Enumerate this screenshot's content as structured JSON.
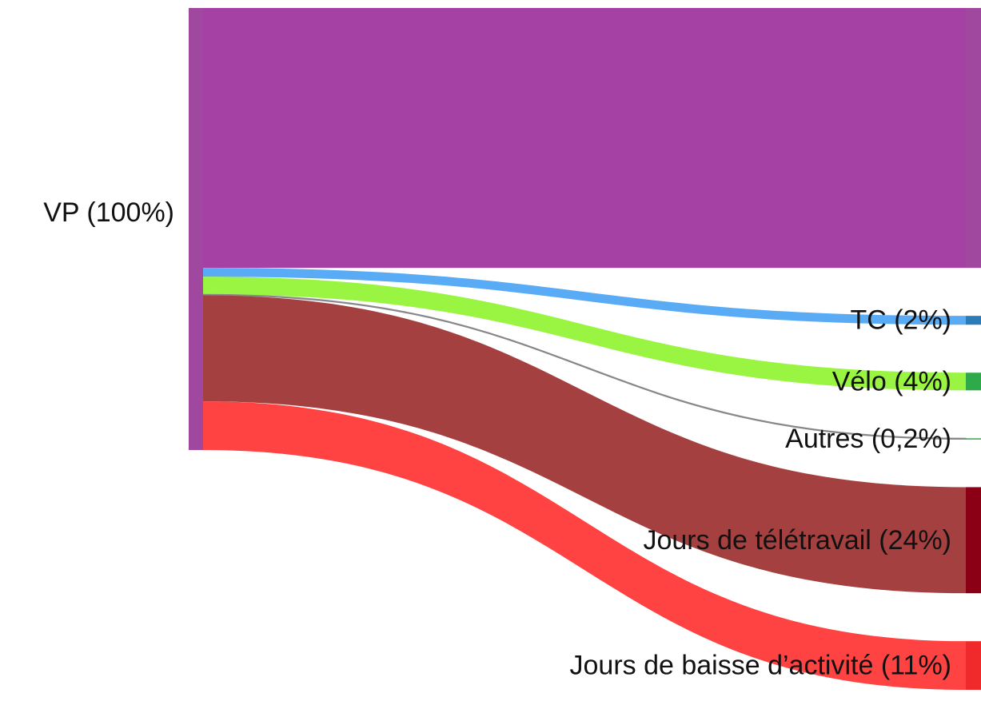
{
  "chart_data": {
    "type": "sankey",
    "source": {
      "label": "VP (100%)",
      "value": 100,
      "color": "#a0479f"
    },
    "targets": [
      {
        "label": null,
        "value": 58.8,
        "color": "#a541a5",
        "node_color": "#a0479f"
      },
      {
        "label": "TC (2%)",
        "value": 2,
        "color": "#5aabf5",
        "node_color": "#2b7bb9"
      },
      {
        "label": "Vélo (4%)",
        "value": 4,
        "color": "#99f542",
        "node_color": "#2eaa4a"
      },
      {
        "label": "Autres (0,2%)",
        "value": 0.2,
        "color": "#888888",
        "node_color": "#2eaa4a"
      },
      {
        "label": "Jours de télétravail (24%)",
        "value": 24,
        "color": "#a54040",
        "node_color": "#8b0015"
      },
      {
        "label": "Jours de baisse d’activité (11%)",
        "value": 11,
        "color": "#ff4242",
        "node_color": "#f02a2a"
      }
    ]
  }
}
